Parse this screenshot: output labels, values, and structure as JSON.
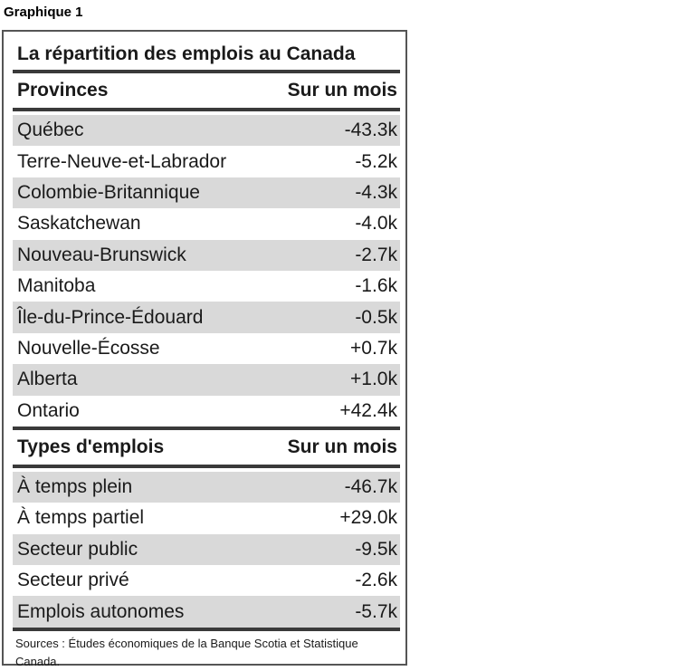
{
  "figure_label": "Graphique 1",
  "title": "La répartition des emplois au Canada",
  "provinces": {
    "header_left": "Provinces",
    "header_right": "Sur un mois",
    "rows": [
      {
        "name": "Québec",
        "value": "-43.3k"
      },
      {
        "name": "Terre-Neuve-et-Labrador",
        "value": "-5.2k"
      },
      {
        "name": "Colombie-Britannique",
        "value": "-4.3k"
      },
      {
        "name": "Saskatchewan",
        "value": "-4.0k"
      },
      {
        "name": "Nouveau-Brunswick",
        "value": "-2.7k"
      },
      {
        "name": "Manitoba",
        "value": "-1.6k"
      },
      {
        "name": "Île-du-Prince-Édouard",
        "value": "-0.5k"
      },
      {
        "name": "Nouvelle-Écosse",
        "value": "+0.7k"
      },
      {
        "name": "Alberta",
        "value": "+1.0k"
      },
      {
        "name": "Ontario",
        "value": "+42.4k"
      }
    ]
  },
  "types": {
    "header_left": "Types d'emplois",
    "header_right": "Sur un mois",
    "rows": [
      {
        "name": "À temps plein",
        "value": "-46.7k"
      },
      {
        "name": "À temps partiel",
        "value": "+29.0k"
      },
      {
        "name": "Secteur public",
        "value": "-9.5k"
      },
      {
        "name": "Secteur privé",
        "value": "-2.6k"
      },
      {
        "name": "Emplois autonomes",
        "value": "-5.7k"
      }
    ]
  },
  "source": "Sources : Études économiques de la Banque Scotia et Statistique Canada."
}
